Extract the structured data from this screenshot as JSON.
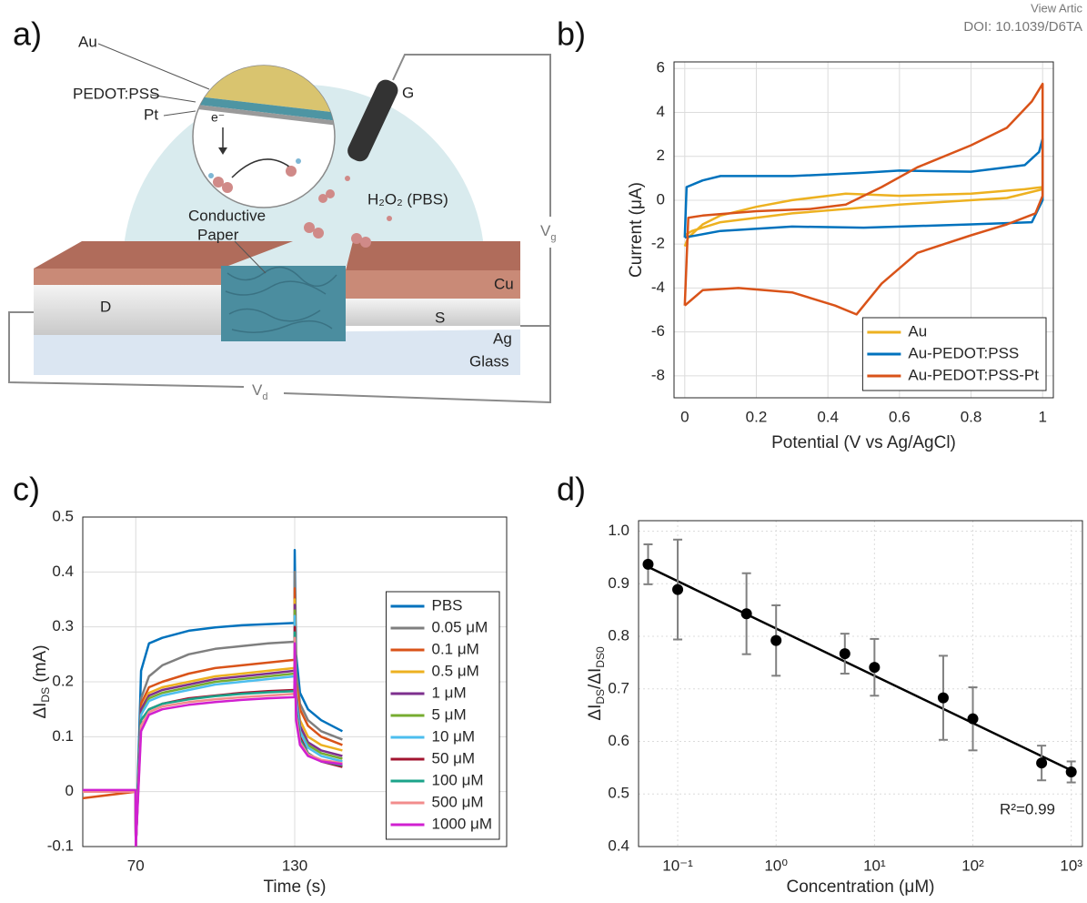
{
  "header": {
    "view": "View Artic",
    "doi": "DOI: 10.1039/D6TA"
  },
  "panel_labels": [
    "a)",
    "b)",
    "c)",
    "d)"
  ],
  "diagram": {
    "labels": {
      "au": "Au",
      "pedot": "PEDOT:PSS",
      "pt": "Pt",
      "electron": "e⁻",
      "gate": "G",
      "solution": "H₂O₂ (PBS)",
      "paper_line1": "Conductive",
      "paper_line2": "Paper",
      "drain": "D",
      "source": "S",
      "cu": "Cu",
      "ag": "Ag",
      "glass": "Glass"
    },
    "vg": [
      "V",
      "g"
    ],
    "vd": [
      "V",
      "d"
    ]
  },
  "chart_data": [
    {
      "type": "line",
      "xlabel": "Potential (V vs Ag/AgCl)",
      "ylabel": "Current (μA)",
      "xlim": [
        -0.03,
        1.03
      ],
      "ylim": [
        -9,
        6.3
      ],
      "xticks": [
        0,
        0.2,
        0.4,
        0.6,
        0.8,
        1
      ],
      "yticks": [
        -8,
        -6,
        -4,
        -2,
        0,
        2,
        4,
        6
      ],
      "grid": true,
      "legend": "lower right",
      "series": [
        {
          "name": "Au",
          "color": "#EDB120",
          "x": [
            0,
            0.01,
            0.05,
            0.1,
            0.2,
            0.3,
            0.45,
            0.6,
            0.8,
            0.95,
            1,
            1,
            0.9,
            0.6,
            0.3,
            0.1,
            0.02,
            0
          ],
          "values": [
            -2.1,
            -1.7,
            -1.1,
            -0.7,
            -0.3,
            0,
            0.3,
            0.2,
            0.3,
            0.5,
            0.6,
            0.5,
            0.1,
            -0.2,
            -0.6,
            -1,
            -1.4,
            -1.6
          ]
        },
        {
          "name": "Au-PEDOT:PSS",
          "color": "#0072BD",
          "x": [
            0,
            0.005,
            0.05,
            0.1,
            0.3,
            0.5,
            0.6,
            0.8,
            0.95,
            0.99,
            1,
            1,
            0.97,
            0.8,
            0.5,
            0.3,
            0.1,
            0
          ],
          "values": [
            -1.7,
            0.6,
            0.9,
            1.1,
            1.1,
            1.25,
            1.35,
            1.3,
            1.6,
            2.2,
            2.8,
            0,
            -1,
            -1.1,
            -1.25,
            -1.2,
            -1.4,
            -1.7
          ]
        },
        {
          "name": "Au-PEDOT:PSS-Pt",
          "color": "#D95319",
          "x": [
            0,
            0.01,
            0.05,
            0.2,
            0.35,
            0.45,
            0.55,
            0.65,
            0.8,
            0.9,
            0.97,
            1,
            1,
            0.98,
            0.9,
            0.8,
            0.65,
            0.55,
            0.48,
            0.42,
            0.3,
            0.15,
            0.05,
            0
          ],
          "values": [
            -4.8,
            -0.8,
            -0.7,
            -0.5,
            -0.4,
            -0.2,
            0.6,
            1.5,
            2.5,
            3.3,
            4.5,
            5.3,
            0.2,
            -0.6,
            -1.1,
            -1.6,
            -2.4,
            -3.8,
            -5.2,
            -4.8,
            -4.2,
            -4,
            -4.1,
            -4.8
          ]
        }
      ]
    },
    {
      "type": "line",
      "xlabel": "Time (s)",
      "ylabel_parts": [
        "ΔI",
        "DS",
        " (mA)"
      ],
      "xlim": [
        50,
        210
      ],
      "ylim": [
        -0.1,
        0.5
      ],
      "xticks": [
        70,
        130
      ],
      "yticks": [
        -0.1,
        0,
        0.1,
        0.2,
        0.3,
        0.4,
        0.5
      ],
      "grid": true,
      "legend": "lower right",
      "x": [
        50,
        69.9,
        70,
        72,
        75,
        80,
        90,
        100,
        110,
        120,
        129.9,
        130,
        130.5,
        132,
        135,
        140,
        148
      ],
      "series": [
        {
          "name": "PBS",
          "color": "#0072BD",
          "values": [
            0,
            0,
            -0.1,
            0.22,
            0.27,
            0.28,
            0.293,
            0.299,
            0.303,
            0.305,
            0.307,
            0.44,
            0.25,
            0.18,
            0.15,
            0.13,
            0.11
          ]
        },
        {
          "name": "0.05 μM",
          "color": "#7F7F7F",
          "values": [
            0,
            0,
            -0.1,
            0.17,
            0.21,
            0.23,
            0.25,
            0.26,
            0.265,
            0.27,
            0.273,
            0.4,
            0.22,
            0.16,
            0.13,
            0.11,
            0.095
          ]
        },
        {
          "name": "0.1 μM",
          "color": "#D95319",
          "values": [
            -0.012,
            0,
            -0.1,
            0.16,
            0.19,
            0.2,
            0.215,
            0.225,
            0.23,
            0.235,
            0.24,
            0.37,
            0.2,
            0.15,
            0.12,
            0.1,
            0.085
          ]
        },
        {
          "name": "0.5 μM",
          "color": "#EDB120",
          "values": [
            0,
            0,
            -0.1,
            0.15,
            0.18,
            0.19,
            0.2,
            0.21,
            0.215,
            0.22,
            0.225,
            0.35,
            0.19,
            0.13,
            0.1,
            0.085,
            0.075
          ]
        },
        {
          "name": "1 μM",
          "color": "#7E2F8E",
          "values": [
            0,
            0,
            -0.1,
            0.15,
            0.175,
            0.185,
            0.195,
            0.205,
            0.21,
            0.215,
            0.22,
            0.34,
            0.18,
            0.12,
            0.09,
            0.075,
            0.065
          ]
        },
        {
          "name": "5 μM",
          "color": "#77AC30",
          "values": [
            0,
            0,
            -0.1,
            0.14,
            0.17,
            0.18,
            0.19,
            0.2,
            0.205,
            0.21,
            0.215,
            0.33,
            0.17,
            0.11,
            0.085,
            0.07,
            0.06
          ]
        },
        {
          "name": "10 μM",
          "color": "#4DBEEE",
          "values": [
            0,
            0,
            -0.1,
            0.14,
            0.165,
            0.175,
            0.185,
            0.195,
            0.2,
            0.205,
            0.21,
            0.32,
            0.17,
            0.11,
            0.08,
            0.065,
            0.055
          ]
        },
        {
          "name": "50 μM",
          "color": "#A2142F",
          "values": [
            0,
            0,
            -0.1,
            0.13,
            0.15,
            0.16,
            0.17,
            0.175,
            0.18,
            0.183,
            0.185,
            0.3,
            0.15,
            0.1,
            0.07,
            0.055,
            0.045
          ]
        },
        {
          "name": "100 μM",
          "color": "#1BA38A",
          "values": [
            0,
            0,
            -0.1,
            0.13,
            0.15,
            0.16,
            0.168,
            0.174,
            0.178,
            0.181,
            0.183,
            0.29,
            0.15,
            0.095,
            0.07,
            0.055,
            0.048
          ]
        },
        {
          "name": "500 μM",
          "color": "#F28C8C",
          "values": [
            0,
            0,
            -0.1,
            0.12,
            0.145,
            0.155,
            0.163,
            0.168,
            0.172,
            0.175,
            0.178,
            0.28,
            0.14,
            0.09,
            0.068,
            0.058,
            0.052
          ]
        },
        {
          "name": "1000 μM",
          "color": "#D020D0",
          "values": [
            0.003,
            0.003,
            -0.1,
            0.11,
            0.14,
            0.15,
            0.158,
            0.163,
            0.167,
            0.17,
            0.172,
            0.27,
            0.13,
            0.085,
            0.065,
            0.055,
            0.05
          ]
        }
      ]
    },
    {
      "type": "scatter",
      "xlabel": "Concentration (μM)",
      "ylabel_parts": [
        "ΔI",
        "DS",
        "/ΔI",
        "DS0"
      ],
      "xscale": "log",
      "xlim": [
        0.04,
        1300
      ],
      "ylim": [
        0.4,
        1.02
      ],
      "xticks": [
        {
          "value": 0.1,
          "label": "10⁻¹"
        },
        {
          "value": 1,
          "label": "10⁰"
        },
        {
          "value": 10,
          "label": "10¹"
        },
        {
          "value": 100,
          "label": "10²"
        },
        {
          "value": 1000,
          "label": "10³"
        }
      ],
      "yticks": [
        0.4,
        0.5,
        0.6,
        0.7,
        0.8,
        0.9,
        {
          "value": 1,
          "label": "1.0"
        }
      ],
      "grid": true,
      "x": [
        0.05,
        0.1,
        0.5,
        1,
        5,
        10,
        50,
        100,
        500,
        1000
      ],
      "series": [
        {
          "color": "#000000",
          "error_color": "#808080",
          "values": [
            0.937,
            0.889,
            0.843,
            0.792,
            0.767,
            0.741,
            0.683,
            0.643,
            0.559,
            0.542
          ],
          "errors": [
            0.038,
            0.095,
            0.077,
            0.067,
            0.038,
            0.054,
            0.08,
            0.06,
            0.033,
            0.02
          ]
        }
      ],
      "fit": {
        "color": "#000000",
        "x": [
          0.05,
          1000
        ],
        "values": [
          0.932,
          0.545
        ]
      },
      "annotation": "R²=0.99"
    }
  ]
}
